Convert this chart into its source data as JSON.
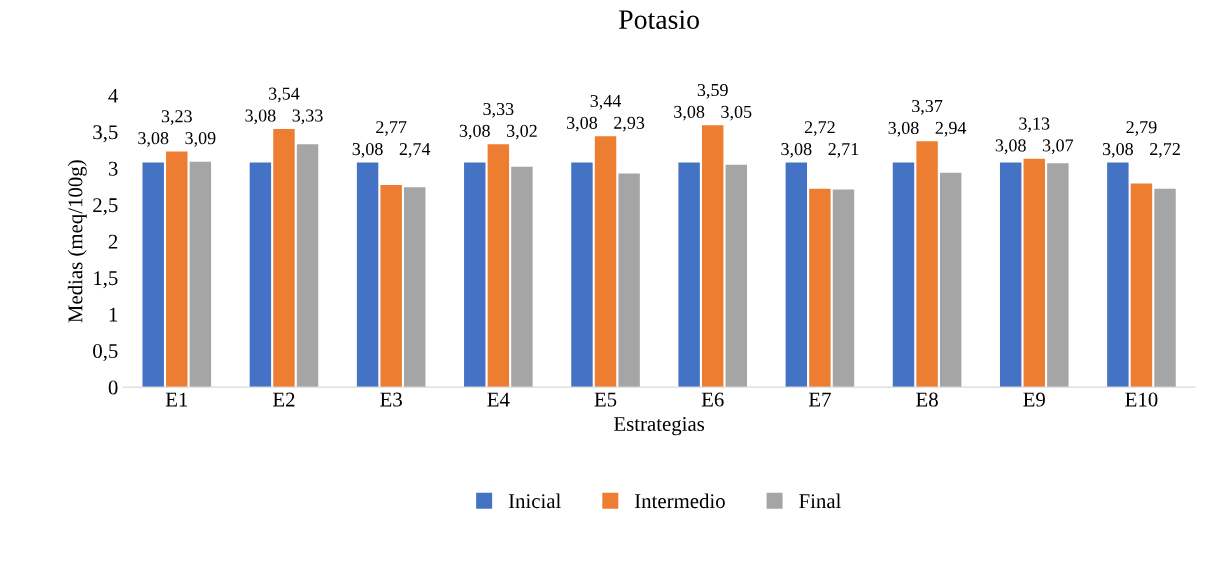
{
  "chart_data": {
    "type": "bar",
    "title": "Potasio",
    "xlabel": "Estrategias",
    "ylabel": "Medias (meq/100g)",
    "categories": [
      "E1",
      "E2",
      "E3",
      "E4",
      "E5",
      "E6",
      "E7",
      "E8",
      "E9",
      "E10"
    ],
    "series": [
      {
        "name": "Inicial",
        "color": "#4472c4",
        "values": [
          3.08,
          3.08,
          3.08,
          3.08,
          3.08,
          3.08,
          3.08,
          3.08,
          3.08,
          3.08
        ],
        "value_labels": [
          "3,08",
          "3,08",
          "3,08",
          "3,08",
          "3,08",
          "3,08",
          "3,08",
          "3,08",
          "3,08",
          "3,08"
        ]
      },
      {
        "name": "Intermedio",
        "color": "#ed7d31",
        "values": [
          3.23,
          3.54,
          2.77,
          3.33,
          3.44,
          3.59,
          2.72,
          3.37,
          3.13,
          2.79
        ],
        "value_labels": [
          "3,23",
          "3,54",
          "2,77",
          "3,33",
          "3,44",
          "3,59",
          "2,72",
          "3,37",
          "3,13",
          "2,79"
        ]
      },
      {
        "name": "Final",
        "color": "#a5a5a5",
        "values": [
          3.09,
          3.33,
          2.74,
          3.02,
          2.93,
          3.05,
          2.71,
          2.94,
          3.07,
          2.72
        ],
        "value_labels": [
          "3,09",
          "3,33",
          "2,74",
          "3,02",
          "2,93",
          "3,05",
          "2,71",
          "2,94",
          "3,07",
          "2,72"
        ]
      }
    ],
    "ylim": [
      0,
      4
    ],
    "yticks": [
      0,
      {
        "value": 0.5,
        "label": "0,5"
      },
      1,
      {
        "value": 1.5,
        "label": "1,5"
      },
      2,
      {
        "value": 2.5,
        "label": "2,5"
      },
      3,
      {
        "value": 3.5,
        "label": "3,5"
      },
      4
    ],
    "grid": false,
    "legend": "bottom"
  }
}
